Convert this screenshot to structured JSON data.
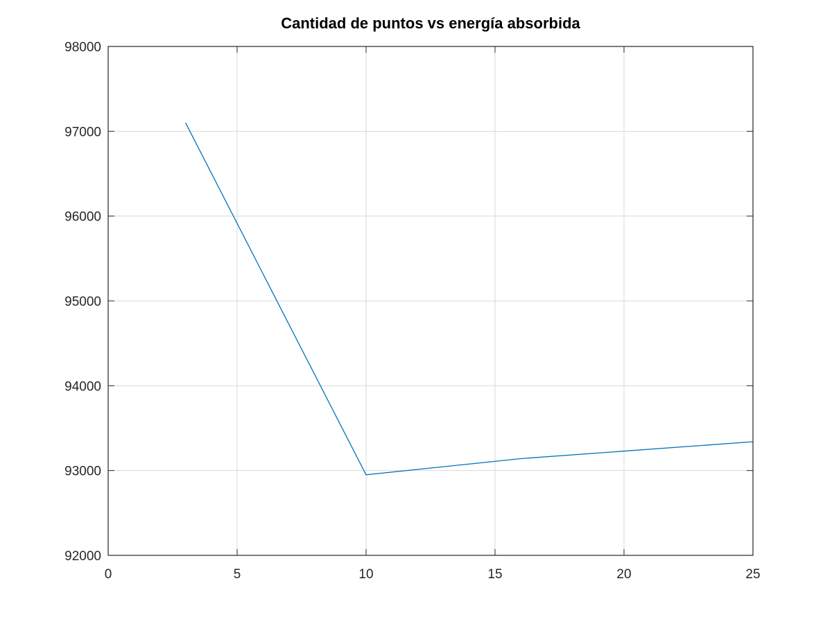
{
  "chart_data": {
    "type": "line",
    "title": "Cantidad de puntos vs energía absorbida",
    "xlabel": "",
    "ylabel": "",
    "xlim": [
      0,
      25
    ],
    "ylim": [
      92000,
      98000
    ],
    "xticks": [
      0,
      5,
      10,
      15,
      20,
      25
    ],
    "yticks": [
      92000,
      93000,
      94000,
      95000,
      96000,
      97000,
      98000
    ],
    "xtick_labels": [
      "0",
      "5",
      "10",
      "15",
      "20",
      "25"
    ],
    "ytick_labels": [
      "92000",
      "93000",
      "94000",
      "95000",
      "96000",
      "97000",
      "98000"
    ],
    "grid": true,
    "series": [
      {
        "color": "#0072bd",
        "x": [
          3,
          10,
          16,
          25
        ],
        "y": [
          97100,
          92950,
          93140,
          93340
        ]
      }
    ]
  }
}
